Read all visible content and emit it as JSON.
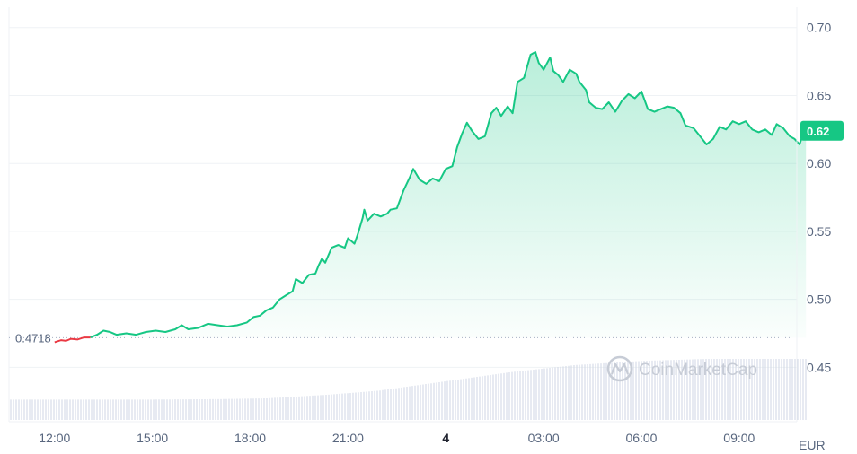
{
  "chart_data": {
    "type": "line",
    "currency": "EUR",
    "start_value": "0.4718",
    "current_value": "0.62",
    "watermark": "CoinMarketCap",
    "y_ticks": [
      "0.70",
      "0.65",
      "0.60",
      "0.55",
      "0.50",
      "0.45"
    ],
    "ylim": [
      0.41,
      0.715
    ],
    "x_ticks": [
      {
        "label": "12:00",
        "t": 0,
        "bold": false
      },
      {
        "label": "15:00",
        "t": 3,
        "bold": false
      },
      {
        "label": "18:00",
        "t": 6,
        "bold": false
      },
      {
        "label": "21:00",
        "t": 9,
        "bold": false
      },
      {
        "label": "4",
        "t": 12,
        "bold": true
      },
      {
        "label": "03:00",
        "t": 15,
        "bold": false
      },
      {
        "label": "06:00",
        "t": 18,
        "bold": false
      },
      {
        "label": "09:00",
        "t": 21,
        "bold": false
      }
    ],
    "xlim": [
      -1.4,
      22.3
    ],
    "colors": {
      "up": "#16c784",
      "down": "#ea3943",
      "grid": "#eff2f5",
      "volume": "#cfd6e4"
    },
    "series": [
      {
        "values": [
          [
            0.0,
            0.4685
          ],
          [
            0.2,
            0.47
          ],
          [
            0.35,
            0.4695
          ],
          [
            0.5,
            0.471
          ],
          [
            0.7,
            0.4705
          ],
          [
            0.9,
            0.472
          ],
          [
            1.1,
            0.472
          ],
          [
            1.3,
            0.474
          ],
          [
            1.5,
            0.477
          ],
          [
            1.7,
            0.476
          ],
          [
            1.9,
            0.474
          ],
          [
            2.2,
            0.475
          ],
          [
            2.5,
            0.474
          ],
          [
            2.8,
            0.476
          ],
          [
            3.1,
            0.477
          ],
          [
            3.4,
            0.476
          ],
          [
            3.7,
            0.478
          ],
          [
            3.9,
            0.481
          ],
          [
            4.1,
            0.478
          ],
          [
            4.4,
            0.479
          ],
          [
            4.7,
            0.482
          ],
          [
            5.0,
            0.481
          ],
          [
            5.3,
            0.48
          ],
          [
            5.6,
            0.481
          ],
          [
            5.9,
            0.483
          ],
          [
            6.1,
            0.487
          ],
          [
            6.3,
            0.488
          ],
          [
            6.5,
            0.492
          ],
          [
            6.7,
            0.494
          ],
          [
            6.9,
            0.5
          ],
          [
            7.1,
            0.503
          ],
          [
            7.3,
            0.506
          ],
          [
            7.4,
            0.515
          ],
          [
            7.6,
            0.512
          ],
          [
            7.8,
            0.518
          ],
          [
            8.0,
            0.519
          ],
          [
            8.1,
            0.525
          ],
          [
            8.2,
            0.53
          ],
          [
            8.3,
            0.527
          ],
          [
            8.5,
            0.538
          ],
          [
            8.7,
            0.54
          ],
          [
            8.9,
            0.538
          ],
          [
            9.0,
            0.545
          ],
          [
            9.2,
            0.541
          ],
          [
            9.3,
            0.548
          ],
          [
            9.45,
            0.56
          ],
          [
            9.5,
            0.566
          ],
          [
            9.6,
            0.558
          ],
          [
            9.8,
            0.563
          ],
          [
            10.0,
            0.561
          ],
          [
            10.2,
            0.563
          ],
          [
            10.3,
            0.566
          ],
          [
            10.5,
            0.567
          ],
          [
            10.7,
            0.58
          ],
          [
            10.9,
            0.59
          ],
          [
            11.0,
            0.596
          ],
          [
            11.2,
            0.588
          ],
          [
            11.4,
            0.585
          ],
          [
            11.6,
            0.589
          ],
          [
            11.8,
            0.587
          ],
          [
            12.0,
            0.596
          ],
          [
            12.2,
            0.598
          ],
          [
            12.35,
            0.612
          ],
          [
            12.5,
            0.622
          ],
          [
            12.65,
            0.63
          ],
          [
            12.8,
            0.624
          ],
          [
            13.0,
            0.618
          ],
          [
            13.2,
            0.62
          ],
          [
            13.4,
            0.637
          ],
          [
            13.55,
            0.641
          ],
          [
            13.7,
            0.635
          ],
          [
            13.9,
            0.642
          ],
          [
            14.05,
            0.637
          ],
          [
            14.2,
            0.66
          ],
          [
            14.4,
            0.663
          ],
          [
            14.6,
            0.68
          ],
          [
            14.75,
            0.682
          ],
          [
            14.85,
            0.674
          ],
          [
            15.0,
            0.669
          ],
          [
            15.2,
            0.678
          ],
          [
            15.3,
            0.668
          ],
          [
            15.45,
            0.665
          ],
          [
            15.6,
            0.66
          ],
          [
            15.8,
            0.669
          ],
          [
            16.0,
            0.666
          ],
          [
            16.1,
            0.66
          ],
          [
            16.3,
            0.654
          ],
          [
            16.4,
            0.645
          ],
          [
            16.6,
            0.641
          ],
          [
            16.8,
            0.64
          ],
          [
            17.0,
            0.645
          ],
          [
            17.2,
            0.638
          ],
          [
            17.4,
            0.646
          ],
          [
            17.6,
            0.651
          ],
          [
            17.8,
            0.648
          ],
          [
            18.0,
            0.653
          ],
          [
            18.2,
            0.64
          ],
          [
            18.4,
            0.638
          ],
          [
            18.6,
            0.64
          ],
          [
            18.8,
            0.642
          ],
          [
            19.0,
            0.641
          ],
          [
            19.2,
            0.637
          ],
          [
            19.35,
            0.628
          ],
          [
            19.6,
            0.626
          ],
          [
            19.8,
            0.62
          ],
          [
            20.0,
            0.614
          ],
          [
            20.2,
            0.618
          ],
          [
            20.4,
            0.627
          ],
          [
            20.6,
            0.625
          ],
          [
            20.8,
            0.631
          ],
          [
            21.0,
            0.629
          ],
          [
            21.2,
            0.631
          ],
          [
            21.4,
            0.625
          ],
          [
            21.6,
            0.623
          ],
          [
            21.8,
            0.625
          ],
          [
            22.0,
            0.621
          ],
          [
            22.15,
            0.629
          ],
          [
            22.35,
            0.626
          ],
          [
            22.55,
            0.62
          ],
          [
            22.7,
            0.618
          ],
          [
            22.85,
            0.614
          ],
          [
            22.95,
            0.621
          ],
          [
            23.05,
            0.624
          ]
        ]
      }
    ],
    "volume": {
      "values": [
        [
          0,
          1
        ],
        [
          3,
          1
        ],
        [
          5,
          1.02
        ],
        [
          6.5,
          1.06
        ],
        [
          8.5,
          1.25
        ],
        [
          10,
          1.45
        ],
        [
          12,
          1.9
        ],
        [
          14,
          2.35
        ],
        [
          16,
          2.7
        ],
        [
          18,
          2.9
        ],
        [
          20,
          3.0
        ],
        [
          23.05,
          3.0
        ]
      ]
    }
  }
}
